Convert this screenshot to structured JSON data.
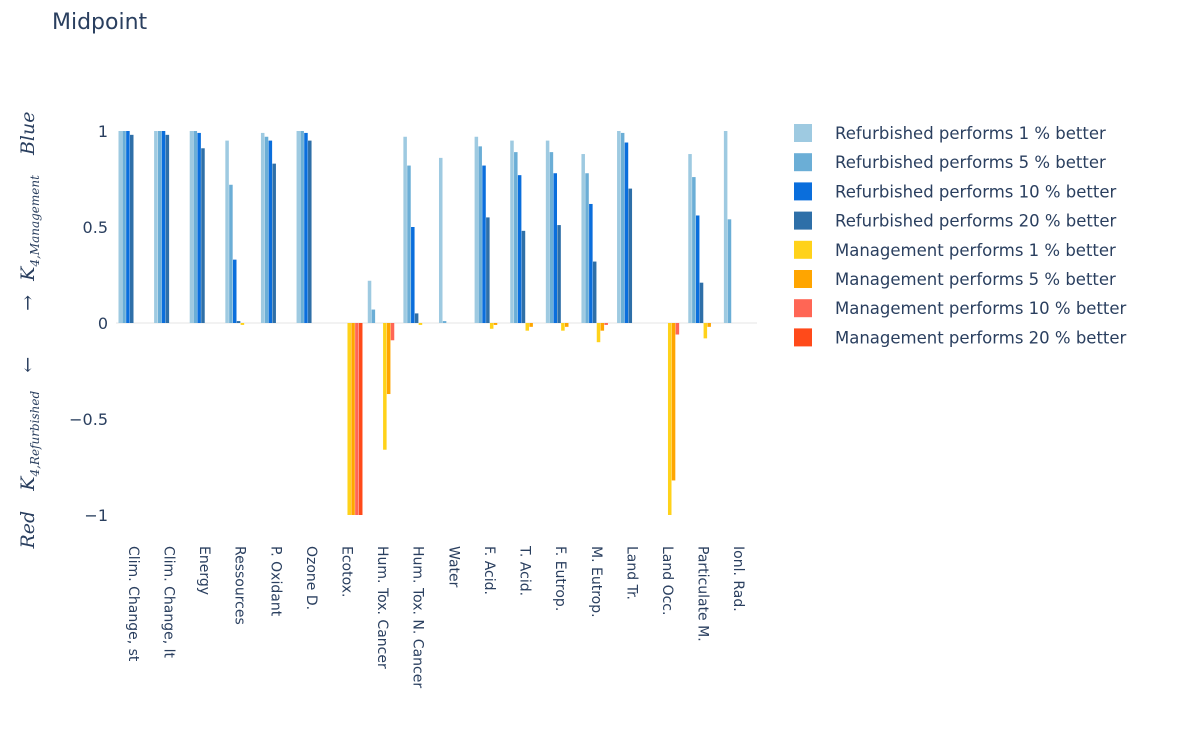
{
  "chart_data": {
    "type": "bar",
    "title": "Midpoint",
    "ylabel": {
      "blue_word": "Blue",
      "red_word": "Red",
      "up_arrow": "→",
      "down_arrow": "←",
      "main_symbol": "K",
      "management_subscript": "4,Management",
      "refurbished_subscript": "4,Refurbished"
    },
    "ylim": [
      -1.05,
      1.08
    ],
    "yticks": [
      {
        "value": 1,
        "label": "1"
      },
      {
        "value": 0.5,
        "label": "0.5"
      },
      {
        "value": 0,
        "label": "0"
      },
      {
        "value": -0.5,
        "label": "−0.5"
      },
      {
        "value": -1,
        "label": "−1"
      }
    ],
    "grid": false,
    "legend_position": "right",
    "categories": [
      "Clim. Change, st",
      "Clim. Change, lt",
      "Energy",
      "Ressources",
      "P. Oxidant",
      "Ozone D.",
      "Ecotox.",
      "Hum. Tox. Cancer",
      "Hum. Tox. N. Cancer",
      "Water",
      "F. Acid.",
      "T. Acid.",
      "F. Eutrop.",
      "M. Eutrop.",
      "Land Tr.",
      "Land Occ.",
      "Particulate M.",
      "Ionl. Rad."
    ],
    "series": [
      {
        "name": "Refurbished performs 1 % better",
        "color": "#9ecae1",
        "values": [
          1,
          1,
          1,
          0.95,
          0.99,
          1,
          0,
          0.22,
          0.97,
          0.86,
          0.97,
          0.95,
          0.95,
          0.88,
          1,
          0,
          0.88,
          1
        ]
      },
      {
        "name": "Refurbished performs 5 % better",
        "color": "#6baed6",
        "values": [
          1,
          1,
          1,
          0.72,
          0.97,
          1,
          0,
          0.07,
          0.82,
          0.01,
          0.92,
          0.89,
          0.89,
          0.78,
          0.99,
          0,
          0.76,
          0.54
        ]
      },
      {
        "name": "Refurbished performs 10 % better",
        "color": "#0a6edc",
        "values": [
          1,
          1,
          0.99,
          0.33,
          0.95,
          0.99,
          0,
          0,
          0.5,
          0,
          0.82,
          0.77,
          0.78,
          0.62,
          0.94,
          0,
          0.56,
          0
        ]
      },
      {
        "name": "Refurbished performs 20 % better",
        "color": "#2e6fa8",
        "values": [
          0.98,
          0.98,
          0.91,
          0.01,
          0.83,
          0.95,
          0,
          0,
          0.05,
          0,
          0.55,
          0.48,
          0.51,
          0.32,
          0.7,
          0,
          0.21,
          0
        ]
      },
      {
        "name": "Management performs 1 % better",
        "color": "#ffd21a",
        "values": [
          0,
          0,
          0,
          -0.01,
          0,
          0,
          -1,
          -0.66,
          -0.01,
          0,
          -0.03,
          -0.04,
          -0.04,
          -0.1,
          0,
          -1,
          -0.08,
          0
        ]
      },
      {
        "name": "Management performs 5 % better",
        "color": "#ffa500",
        "values": [
          0,
          0,
          0,
          0,
          0,
          0,
          -1,
          -0.37,
          0,
          0,
          -0.01,
          -0.02,
          -0.02,
          -0.04,
          0,
          -0.82,
          -0.02,
          0
        ]
      },
      {
        "name": "Management performs 10 % better",
        "color": "#ff6655",
        "values": [
          0,
          0,
          0,
          0,
          0,
          0,
          -1,
          -0.09,
          0,
          0,
          0,
          0,
          0,
          -0.01,
          0,
          -0.06,
          0,
          0
        ]
      },
      {
        "name": "Management performs 20 % better",
        "color": "#ff4a1a",
        "values": [
          0,
          0,
          0,
          0,
          0,
          0,
          -1,
          0,
          0,
          0,
          0,
          0,
          0,
          0,
          0,
          0,
          0,
          0
        ]
      }
    ]
  }
}
